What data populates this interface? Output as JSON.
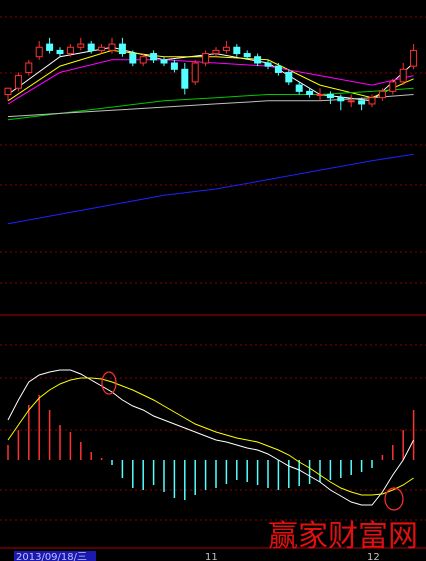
{
  "chart_data": [
    {
      "type": "candlestick",
      "ylim": [
        0,
        100
      ],
      "up_color": "#ff3232",
      "down_color": "#54ffff",
      "open": [
        70,
        72,
        77,
        82,
        86,
        84,
        83,
        85,
        86,
        84,
        84,
        86,
        83,
        80,
        83,
        81,
        80,
        78,
        74,
        80,
        83,
        84,
        85,
        83,
        82,
        80,
        79,
        77,
        73,
        71,
        70,
        70,
        69,
        68,
        68,
        67,
        69,
        71,
        74,
        79
      ],
      "high": [
        72,
        77,
        81,
        87,
        88,
        85,
        86,
        88,
        87,
        86,
        88,
        88,
        84,
        83,
        84,
        82,
        81,
        80,
        81,
        84,
        85,
        87,
        86,
        84,
        83,
        81,
        80,
        78,
        74,
        72,
        72,
        71,
        70,
        70,
        69,
        70,
        72,
        75,
        80,
        86
      ],
      "low": [
        68,
        71,
        76,
        81,
        83,
        82,
        82,
        84,
        83,
        83,
        83,
        82,
        79,
        79,
        80,
        79,
        77,
        70,
        73,
        79,
        82,
        83,
        82,
        81,
        79,
        78,
        76,
        73,
        70,
        69,
        68,
        67,
        65,
        66,
        65,
        66,
        68,
        70,
        73,
        78
      ],
      "close": [
        72,
        76,
        80,
        85,
        84,
        83,
        85,
        86,
        84,
        85,
        86,
        83,
        80,
        82,
        81,
        80,
        78,
        72,
        80,
        83,
        84,
        85,
        83,
        82,
        80,
        79,
        77,
        74,
        71,
        70,
        70,
        69,
        68,
        68,
        67,
        69,
        71,
        74,
        78,
        84
      ],
      "series": [
        {
          "color": "#ffffff",
          "x": [
            0,
            5,
            10,
            15,
            20,
            25,
            30,
            35,
            39
          ],
          "values": [
            70,
            82,
            85,
            81,
            83,
            80,
            70,
            68,
            80
          ]
        },
        {
          "color": "#ffff00",
          "x": [
            0,
            5,
            10,
            15,
            20,
            25,
            30,
            35,
            39
          ],
          "values": [
            68,
            79,
            84,
            82,
            82,
            81,
            73,
            69,
            75
          ]
        },
        {
          "color": "#ff00ff",
          "x": [
            0,
            5,
            10,
            15,
            20,
            25,
            30,
            35,
            39
          ],
          "values": [
            67,
            77,
            81,
            81,
            80,
            79,
            76,
            73,
            76
          ]
        },
        {
          "color": "#00c800",
          "x": [
            0,
            5,
            10,
            15,
            20,
            25,
            30,
            35,
            39
          ],
          "values": [
            62,
            64,
            66,
            68,
            69,
            70,
            70,
            71,
            72
          ]
        },
        {
          "color": "#c0c0c0",
          "x": [
            0,
            5,
            10,
            15,
            20,
            25,
            30,
            35,
            39
          ],
          "values": [
            63,
            64,
            65,
            66,
            67,
            68,
            68,
            69,
            70
          ]
        },
        {
          "color": "#2020ff",
          "x": [
            0,
            5,
            10,
            15,
            20,
            25,
            30,
            35,
            39
          ],
          "values": [
            29,
            32,
            35,
            38,
            40,
            43,
            46,
            49,
            51
          ]
        }
      ]
    },
    {
      "type": "macd",
      "ylim": [
        -88,
        140
      ],
      "up_color": "#ff3232",
      "down_color": "#54ffff",
      "values": [
        15,
        30,
        55,
        65,
        50,
        35,
        28,
        18,
        8,
        2,
        -5,
        -18,
        -28,
        -30,
        -25,
        -32,
        -38,
        -40,
        -35,
        -30,
        -28,
        -24,
        -20,
        -22,
        -25,
        -28,
        -30,
        -28,
        -26,
        -24,
        -22,
        -20,
        -18,
        -15,
        -12,
        -8,
        5,
        15,
        30,
        50
      ],
      "series": [
        {
          "color": "#ffffff",
          "values": [
            40,
            60,
            78,
            85,
            88,
            90,
            90,
            86,
            80,
            74,
            68,
            60,
            54,
            50,
            44,
            40,
            36,
            32,
            28,
            24,
            20,
            18,
            15,
            12,
            10,
            6,
            0,
            -6,
            -10,
            -16,
            -22,
            -30,
            -36,
            -42,
            -45,
            -45,
            -32,
            -15,
            0,
            20
          ]
        },
        {
          "color": "#ffff00",
          "values": [
            20,
            35,
            50,
            62,
            70,
            76,
            80,
            82,
            82,
            81,
            78,
            74,
            70,
            65,
            60,
            54,
            48,
            42,
            36,
            32,
            28,
            25,
            22,
            20,
            18,
            14,
            10,
            5,
            -2,
            -8,
            -15,
            -22,
            -28,
            -32,
            -35,
            -35,
            -34,
            -30,
            -25,
            -18
          ]
        }
      ]
    }
  ],
  "time_axis": {
    "labels": [
      "2013/09/18/三",
      "11",
      "12"
    ]
  },
  "watermark": "赢家财富网"
}
